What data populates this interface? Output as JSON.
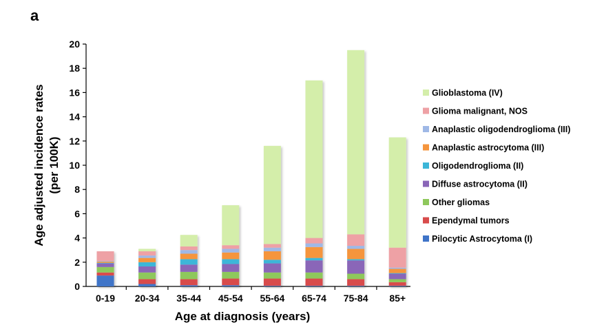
{
  "chart_data": {
    "type": "bar",
    "stacked": true,
    "panel_label": "a",
    "xlabel": "Age at diagnosis (years)",
    "ylabel": [
      "Age adjusted incidence rates",
      "(per 100K)"
    ],
    "ylim": [
      0,
      20
    ],
    "yticks": [
      0,
      2,
      4,
      6,
      8,
      10,
      12,
      14,
      16,
      18,
      20
    ],
    "categories": [
      "0-19",
      "20-34",
      "35-44",
      "45-54",
      "55-64",
      "65-74",
      "75-84",
      "85+"
    ],
    "legend_position": "right",
    "series": [
      {
        "name": "Pilocytic Astrocytoma (I)",
        "color": "#3f74c8",
        "values": [
          0.9,
          0.2,
          0.1,
          0.1,
          0.05,
          0.05,
          0.05,
          0.05
        ]
      },
      {
        "name": "Ependymal tumors",
        "color": "#d84b4b",
        "values": [
          0.25,
          0.4,
          0.5,
          0.55,
          0.6,
          0.6,
          0.55,
          0.3
        ]
      },
      {
        "name": "Other gliomas",
        "color": "#8ec85c",
        "values": [
          0.45,
          0.55,
          0.6,
          0.55,
          0.5,
          0.5,
          0.45,
          0.25
        ]
      },
      {
        "name": "Diffuse astrocytoma (II)",
        "color": "#8a66b8",
        "values": [
          0.3,
          0.5,
          0.6,
          0.65,
          0.75,
          1.0,
          1.1,
          0.45
        ]
      },
      {
        "name": "Oligodendroglioma (II)",
        "color": "#3cb6d8",
        "values": [
          0.05,
          0.35,
          0.45,
          0.4,
          0.3,
          0.2,
          0.1,
          0.05
        ]
      },
      {
        "name": "Anaplastic astrocytoma (III)",
        "color": "#f5953d",
        "values": [
          0.1,
          0.35,
          0.45,
          0.55,
          0.7,
          0.9,
          0.85,
          0.35
        ]
      },
      {
        "name": "Anaplastic oligodendroglioma (III)",
        "color": "#9fb8e6",
        "values": [
          0.05,
          0.2,
          0.3,
          0.3,
          0.3,
          0.3,
          0.25,
          0.1
        ]
      },
      {
        "name": "Glioma malignant, NOS",
        "color": "#eea1a5",
        "values": [
          0.8,
          0.35,
          0.3,
          0.3,
          0.3,
          0.45,
          0.95,
          1.65
        ]
      },
      {
        "name": "Glioblastoma (IV)",
        "color": "#d4eeaa",
        "values": [
          0.0,
          0.2,
          0.95,
          3.3,
          8.1,
          13.0,
          15.2,
          9.1
        ]
      }
    ]
  }
}
